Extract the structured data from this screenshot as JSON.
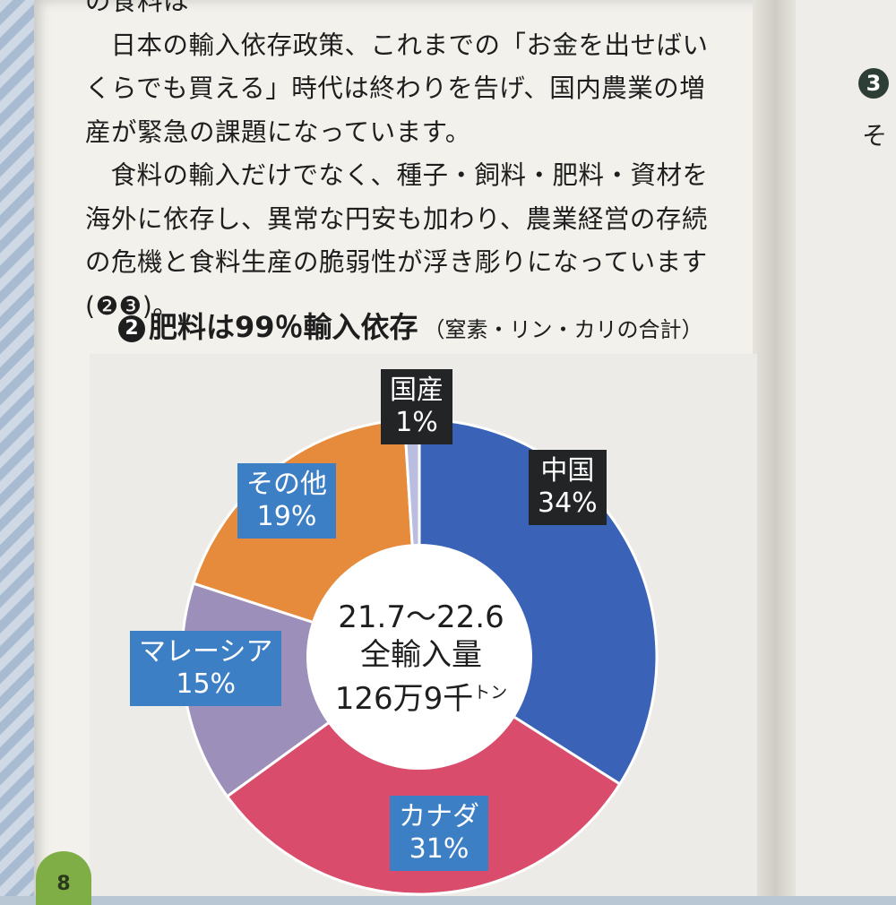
{
  "body": {
    "line1": "の食料は",
    "p2": "日本の輸入依存政策、これまでの「お金を出せばいくらでも買える」時代は終わりを告げ、国内農業の増産が緊急の課題になっています。",
    "p3": "食料の輸入だけでなく、種子・飼料・肥料・資材を海外に依存し、異常な円安も加わり、農業経営の存続の危機と食料生産の脆弱性が浮き彫りになっています(❷❸)。"
  },
  "chart_title": {
    "number": "2",
    "main": "肥料は99％輸入依存",
    "sub": "（窒素・リン・カリの合計）"
  },
  "chart_data": {
    "type": "pie",
    "title": "肥料は99％輸入依存（窒素・リン・カリの合計）",
    "center_label": {
      "line1": "21.7〜22.6",
      "line2": "全輸入量",
      "line3": "126万9千",
      "unit": "トン"
    },
    "slices": [
      {
        "name": "中国",
        "value": 34,
        "label": "34%",
        "color": "#3a63b8"
      },
      {
        "name": "カナダ",
        "value": 31,
        "label": "31%",
        "color": "#d94c6b"
      },
      {
        "name": "マレーシア",
        "value": 15,
        "label": "15%",
        "color": "#9c8fba"
      },
      {
        "name": "その他",
        "value": 19,
        "label": "19%",
        "color": "#e68a3c"
      },
      {
        "name": "国産",
        "value": 1,
        "label": "1%",
        "color": "#b9bde0"
      }
    ]
  },
  "right_page": {
    "marker": "3",
    "text": "そ"
  },
  "page_number": "8",
  "colors": {
    "label_dark": "#222426",
    "label_blue": "#3d7fc4",
    "page_number_bg": "#7fae46"
  }
}
